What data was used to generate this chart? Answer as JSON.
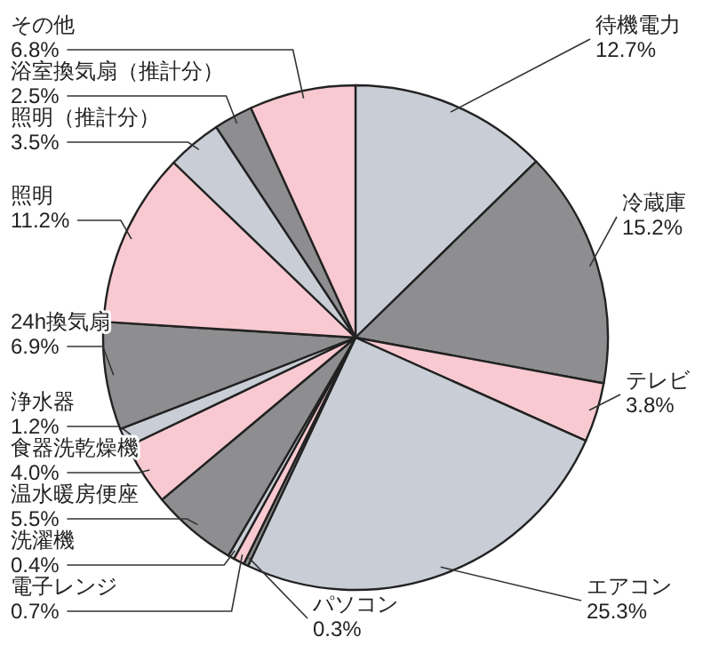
{
  "chart_data": {
    "type": "pie",
    "categories": [
      "待機電力",
      "冷蔵庫",
      "テレビ",
      "エアコン",
      "パソコン",
      "電子レンジ",
      "洗濯機",
      "温水暖房便座",
      "食器洗乾燥機",
      "浄水器",
      "24h換気扇",
      "照明",
      "照明（推計分）",
      "浴室換気扇（推計分）",
      "その他"
    ],
    "values": [
      12.7,
      15.2,
      3.8,
      25.3,
      0.3,
      0.7,
      0.4,
      5.5,
      4.0,
      1.2,
      6.9,
      11.2,
      3.5,
      2.5,
      6.8
    ],
    "value_labels": [
      "12.7%",
      "15.2%",
      "3.8%",
      "25.3%",
      "0.3%",
      "0.7%",
      "0.4%",
      "5.5%",
      "4.0%",
      "1.2%",
      "6.9%",
      "11.2%",
      "3.5%",
      "2.5%",
      "6.8%"
    ],
    "colors": [
      "#c9ced6",
      "#8e8e90",
      "#f8c9d0",
      "#c9ced6",
      "#8e8e90",
      "#f8c9d0",
      "#c9ced6",
      "#8e8e90",
      "#f8c9d0",
      "#c9ced6",
      "#8e8e90",
      "#f8c9d0",
      "#c9ced6",
      "#8e8e90",
      "#f8c9d0"
    ]
  }
}
